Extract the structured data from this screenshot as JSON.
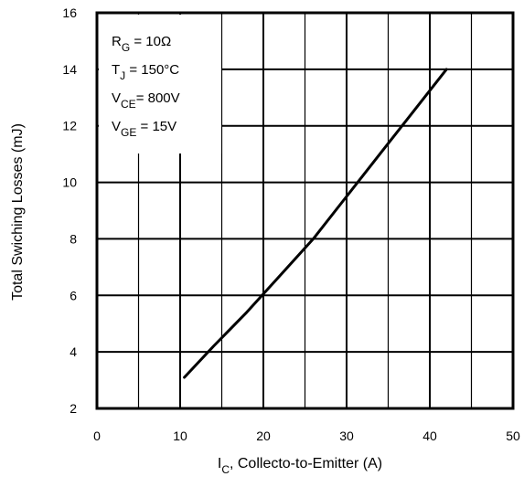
{
  "chart_data": {
    "type": "line",
    "xlabel": {
      "main": "I",
      "sub": "C",
      "rest": ",  Collecto-to-Emitter (A)"
    },
    "ylabel": "Total Swiching Losses (mJ)",
    "xlim": [
      0,
      50
    ],
    "ylim": [
      2,
      16
    ],
    "x_ticks": [
      "0",
      "10",
      "20",
      "30",
      "40",
      "50"
    ],
    "y_ticks": [
      "2",
      "4",
      "6",
      "8",
      "10",
      "12",
      "14",
      "16"
    ],
    "x_grid_step": 5,
    "y_grid_step": 2,
    "grid": true,
    "series": [
      {
        "x": [
          10.5,
          14,
          18,
          22,
          26,
          30,
          34,
          38,
          42
        ],
        "y": [
          3.1,
          4.2,
          5.4,
          6.7,
          8.0,
          9.5,
          11.0,
          12.5,
          14.0
        ]
      }
    ],
    "annotations": [
      {
        "main": "R",
        "sub": "G",
        "rest": " = 10Ω"
      },
      {
        "main": "T",
        "sub": "J",
        "rest": " = 150°C"
      },
      {
        "main": "V",
        "sub": "CE",
        "rest": "= 800V"
      },
      {
        "main": "V",
        "sub": "GE",
        "rest": " = 15V"
      }
    ],
    "colors": {
      "line": "#000000",
      "grid": "#000000",
      "legend_bg": "#ffffff"
    }
  }
}
